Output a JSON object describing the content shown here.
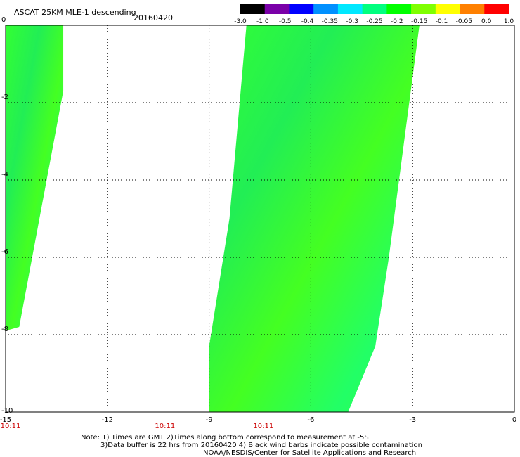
{
  "header": {
    "title": "ASCAT 25KM MLE-1 descending",
    "date": "20160420"
  },
  "colorbar": {
    "labels": [
      "-3.0",
      "-1.0",
      "-0.5",
      "-0.4",
      "-0.35",
      "-0.3",
      "-0.25",
      "-0.2",
      "-0.15",
      "-0.1",
      "-0.05",
      "0.0",
      "1.0"
    ],
    "colors": [
      "#000000",
      "#7a00a8",
      "#0000ff",
      "#0090ff",
      "#00e8ff",
      "#00ff7f",
      "#00ff00",
      "#7fff00",
      "#ffff00",
      "#ff8000",
      "#ff0000"
    ]
  },
  "axes": {
    "x_ticks": [
      "-15",
      "-12",
      "-9",
      "-6",
      "-3",
      "0"
    ],
    "y_ticks": [
      "0",
      "-2",
      "-4",
      "-6",
      "-8",
      "-10"
    ],
    "xlim": [
      -15,
      0
    ],
    "ylim": [
      -10,
      0
    ],
    "grid": "dotted"
  },
  "time_labels": [
    "10:11",
    "10:11",
    "10:11"
  ],
  "notes": {
    "line1": "Note: 1) Times are GMT 2)Times along bottom correspond to measurement at -5S",
    "line2": "3)Data buffer is 22 hrs from 20160420 4) Black wind barbs indicate possible contamination",
    "line3": "NOAA/NESDIS/Center for Satellite Applications and Research"
  },
  "swaths": {
    "west": [
      [
        -15,
        0
      ],
      [
        -13.3,
        0
      ],
      [
        -13.3,
        -1.7
      ],
      [
        -14.6,
        -7.8
      ],
      [
        -15,
        -7.9
      ]
    ],
    "east": [
      [
        -7.9,
        0
      ],
      [
        -2.8,
        0
      ],
      [
        -3.7,
        -6.0
      ],
      [
        -4.1,
        -8.3
      ],
      [
        -4.9,
        -10
      ],
      [
        -9.0,
        -10
      ],
      [
        -9.0,
        -8.3
      ],
      [
        -8.4,
        -5.0
      ]
    ]
  }
}
